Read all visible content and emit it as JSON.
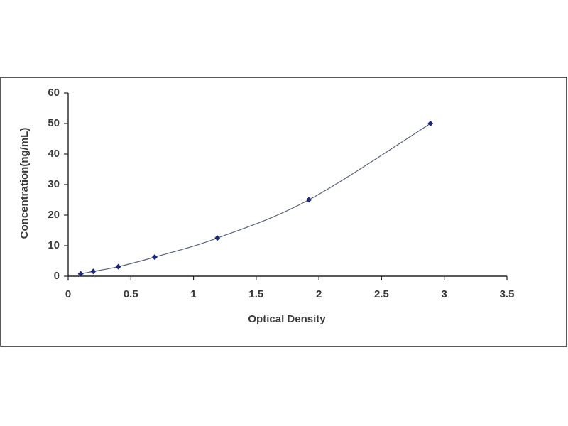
{
  "chart_data": {
    "type": "scatter",
    "xlabel": "Optical Density",
    "ylabel": "Concentration(ng/mL)",
    "x": [
      0.1,
      0.2,
      0.4,
      0.69,
      1.19,
      1.92,
      2.89
    ],
    "values": [
      0.78,
      1.56,
      3.12,
      6.25,
      12.5,
      25,
      50
    ],
    "color": "#1c2773",
    "line_color": "#5a6378",
    "trendline": true,
    "xlim": [
      0,
      3.5
    ],
    "xticks": [
      0,
      0.5,
      1,
      1.5,
      2,
      2.5,
      3,
      3.5
    ],
    "ylim": [
      0,
      60
    ],
    "yticks": [
      0,
      10,
      20,
      30,
      40,
      50,
      60
    ],
    "grid": false
  }
}
